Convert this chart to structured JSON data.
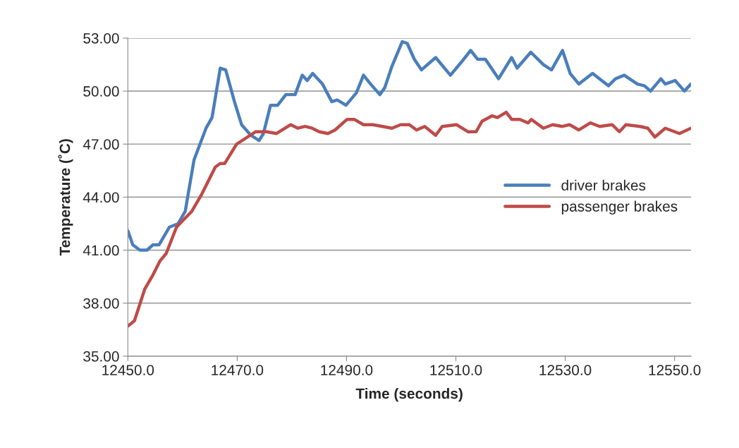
{
  "chart_data": {
    "type": "line",
    "xlabel": "Time (seconds)",
    "ylabel": "Temperature (˚C)",
    "xlim": [
      12450,
      12553
    ],
    "xticks": [
      {
        "value": 12450,
        "label": "12450.0"
      },
      {
        "value": 12470,
        "label": "12470.0"
      },
      {
        "value": 12490,
        "label": "12490.0"
      },
      {
        "value": 12510,
        "label": "12510.0"
      },
      {
        "value": 12530,
        "label": "12530.0"
      },
      {
        "value": 12550,
        "label": "12550.0"
      }
    ],
    "ylim": [
      35,
      53
    ],
    "yticks": [
      {
        "value": 35,
        "label": "35.00"
      },
      {
        "value": 38,
        "label": "38.00"
      },
      {
        "value": 41,
        "label": "41.00"
      },
      {
        "value": 44,
        "label": "44.00"
      },
      {
        "value": 47,
        "label": "47.00"
      },
      {
        "value": 50,
        "label": "50.00"
      },
      {
        "value": 53,
        "label": "53.00"
      }
    ],
    "grid": "y",
    "legend": "right",
    "line_style": "solid",
    "marker": "none",
    "series": [
      {
        "name": "driver brakes",
        "color": "#4a7ebb",
        "x": [
          12450.0,
          12450.9,
          12452.2,
          12453.5,
          12454.6,
          12455.7,
          12457.6,
          12459.2,
          12460.5,
          12462.1,
          12464.3,
          12465.4,
          12466.9,
          12467.9,
          12469.5,
          12470.8,
          12472.5,
          12474.0,
          12474.8,
          12476.1,
          12477.4,
          12478.9,
          12480.6,
          12481.9,
          12482.8,
          12483.8,
          12485.6,
          12487.3,
          12488.3,
          12489.9,
          12491.8,
          12493.1,
          12494.4,
          12496.1,
          12497.0,
          12498.3,
          12500.2,
          12501.1,
          12502.4,
          12503.7,
          12506.3,
          12509.0,
          12510.9,
          12512.7,
          12514.0,
          12515.4,
          12517.8,
          12520.2,
          12521.2,
          12523.7,
          12526.0,
          12527.5,
          12529.5,
          12530.9,
          12532.5,
          12535.0,
          12537.9,
          12539.2,
          12540.8,
          12543.2,
          12544.5,
          12545.6,
          12547.5,
          12548.3,
          12550.1,
          12551.8,
          12553.0
        ],
        "values": [
          42.1,
          41.3,
          41.0,
          41.0,
          41.3,
          41.3,
          42.3,
          42.5,
          43.2,
          46.1,
          47.9,
          48.5,
          51.3,
          51.2,
          49.4,
          48.1,
          47.5,
          47.2,
          47.6,
          49.2,
          49.2,
          49.8,
          49.8,
          50.9,
          50.6,
          51.0,
          50.4,
          49.4,
          49.5,
          49.2,
          49.9,
          50.9,
          50.4,
          49.8,
          50.2,
          51.4,
          52.8,
          52.7,
          51.8,
          51.2,
          51.9,
          50.9,
          51.6,
          52.3,
          51.8,
          51.8,
          50.7,
          51.9,
          51.3,
          52.2,
          51.5,
          51.2,
          52.3,
          51.0,
          50.4,
          51.0,
          50.3,
          50.7,
          50.9,
          50.4,
          50.3,
          50.0,
          50.7,
          50.4,
          50.6,
          50.0,
          50.4
        ]
      },
      {
        "name": "passenger brakes",
        "color": "#be4b48",
        "x": [
          12450.0,
          12451.2,
          12453.1,
          12454.6,
          12455.9,
          12457.0,
          12458.9,
          12461.7,
          12463.4,
          12466.0,
          12466.9,
          12467.7,
          12469.9,
          12473.4,
          12475.4,
          12477.2,
          12479.8,
          12481.1,
          12482.4,
          12483.7,
          12485.0,
          12486.6,
          12487.9,
          12490.1,
          12491.4,
          12493.1,
          12494.8,
          12496.6,
          12498.3,
          12499.9,
          12501.5,
          12502.8,
          12504.3,
          12506.3,
          12507.5,
          12510.1,
          12512.2,
          12513.7,
          12514.8,
          12516.6,
          12517.6,
          12519.2,
          12520.2,
          12521.7,
          12523.2,
          12523.8,
          12526.0,
          12527.7,
          12529.5,
          12530.8,
          12532.5,
          12534.6,
          12536.3,
          12538.6,
          12539.9,
          12541.1,
          12543.7,
          12545.1,
          12546.4,
          12548.3,
          12550.9,
          12553.0
        ],
        "values": [
          36.7,
          37.0,
          38.8,
          39.6,
          40.4,
          40.8,
          42.3,
          43.2,
          44.1,
          45.7,
          45.9,
          45.9,
          47.0,
          47.7,
          47.7,
          47.6,
          48.1,
          47.9,
          48.0,
          47.9,
          47.7,
          47.6,
          47.8,
          48.4,
          48.4,
          48.1,
          48.1,
          48.0,
          47.9,
          48.1,
          48.1,
          47.8,
          48.0,
          47.5,
          48.0,
          48.1,
          47.7,
          47.7,
          48.3,
          48.6,
          48.5,
          48.8,
          48.4,
          48.4,
          48.2,
          48.4,
          47.9,
          48.1,
          48.0,
          48.1,
          47.8,
          48.2,
          48.0,
          48.1,
          47.7,
          48.1,
          48.0,
          47.9,
          47.4,
          47.9,
          47.6,
          47.9
        ]
      }
    ]
  }
}
